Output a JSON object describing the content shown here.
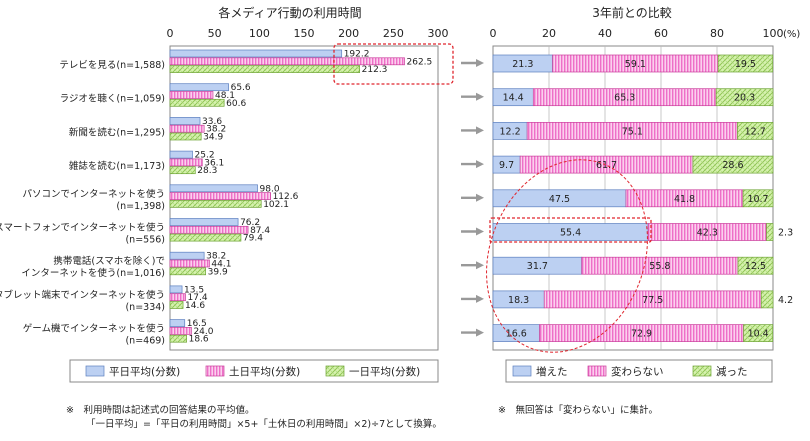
{
  "chart_data": [
    {
      "type": "bar",
      "orientation": "horizontal",
      "title": "各メディア行動の利用時間",
      "xlim": [
        0,
        300
      ],
      "ticks": [
        "0",
        "50",
        "100",
        "150",
        "200",
        "250",
        "300"
      ],
      "categories": [
        "テレビを見る(n=1,588)",
        "ラジオを聴く(n=1,059)",
        "新聞を読む(n=1,295)",
        "雑誌を読む(n=1,173)",
        "パソコンでインターネットを使う(n=1,398)",
        "スマートフォンでインターネットを使う(n=556)",
        "携帯電話(スマホを除く)でインターネットを使う(n=1,016)",
        "タブレット端末でインターネットを使う(n=334)",
        "ゲーム機でインターネットを使う(n=469)"
      ],
      "category_lines": [
        [
          "テレビを見る(n=1,588)"
        ],
        [
          "ラジオを聴く(n=1,059)"
        ],
        [
          "新聞を読む(n=1,295)"
        ],
        [
          "雑誌を読む(n=1,173)"
        ],
        [
          "パソコンでインターネットを使う",
          "(n=1,398)"
        ],
        [
          "スマートフォンでインターネットを使う",
          "(n=556)"
        ],
        [
          "携帯電話(スマホを除く)で",
          "インターネットを使う(n=1,016)"
        ],
        [
          "タブレット端末でインターネットを使う",
          "(n=334)"
        ],
        [
          "ゲーム機でインターネットを使う",
          "(n=469)"
        ]
      ],
      "series": [
        {
          "name": "平日平均(分数)",
          "color": "#b9cdf0",
          "values": [
            192.2,
            65.6,
            33.6,
            25.2,
            98.0,
            76.2,
            38.2,
            13.5,
            16.5
          ],
          "labels": [
            "192.2",
            "65.6",
            "33.6",
            "25.2",
            "98.0",
            "76.2",
            "38.2",
            "13.5",
            "16.5"
          ]
        },
        {
          "name": "土日平均(分数)",
          "color": "#f7a8dc",
          "values": [
            262.5,
            48.1,
            38.2,
            36.1,
            112.6,
            87.4,
            44.1,
            17.4,
            24.0
          ],
          "labels": [
            "262.5",
            "48.1",
            "38.2",
            "36.1",
            "112.6",
            "87.4",
            "44.1",
            "17.4",
            "24.0"
          ]
        },
        {
          "name": "一日平均(分数)",
          "color": "#cdeea0",
          "values": [
            212.3,
            60.6,
            34.9,
            28.3,
            102.1,
            79.4,
            39.9,
            14.6,
            18.6
          ],
          "labels": [
            "212.3",
            "60.6",
            "34.9",
            "28.3",
            "102.1",
            "79.4",
            "39.9",
            "14.6",
            "18.6"
          ]
        }
      ],
      "notes": [
        "※　利用時間は記述式の回答結果の平均値。",
        "「一日平均」=「平日の利用時間」×5+「土休日の利用時間」×2)÷7として換算。"
      ]
    },
    {
      "type": "bar",
      "orientation": "horizontal",
      "stacked": true,
      "title": "3年前との比較",
      "xlim": [
        0,
        100
      ],
      "unit": "(%)",
      "ticks": [
        "0",
        "20",
        "40",
        "60",
        "80",
        "100"
      ],
      "series": [
        {
          "name": "増えた",
          "color": "#b9cdf0",
          "values": [
            21.3,
            14.4,
            12.2,
            9.7,
            47.5,
            55.4,
            31.7,
            18.3,
            16.6
          ],
          "labels": [
            "21.3",
            "14.4",
            "12.2",
            "9.7",
            "47.5",
            "55.4",
            "31.7",
            "18.3",
            "16.6"
          ]
        },
        {
          "name": "変わらない",
          "color": "#f7a8dc",
          "values": [
            59.1,
            65.3,
            75.1,
            61.7,
            41.8,
            42.3,
            55.8,
            77.5,
            72.9
          ],
          "labels": [
            "59.1",
            "65.3",
            "75.1",
            "61.7",
            "41.8",
            "42.3",
            "55.8",
            "77.5",
            "72.9"
          ]
        },
        {
          "name": "減った",
          "color": "#cdeea0",
          "values": [
            19.5,
            20.3,
            12.7,
            28.6,
            10.7,
            2.3,
            12.5,
            4.2,
            10.4
          ],
          "labels": [
            "19.5",
            "20.3",
            "12.7",
            "28.6",
            "10.7",
            "2.3",
            "12.5",
            "4.2",
            "10.4"
          ]
        }
      ],
      "notes": [
        "※　無回答は「変わらない」に集計。"
      ]
    }
  ]
}
